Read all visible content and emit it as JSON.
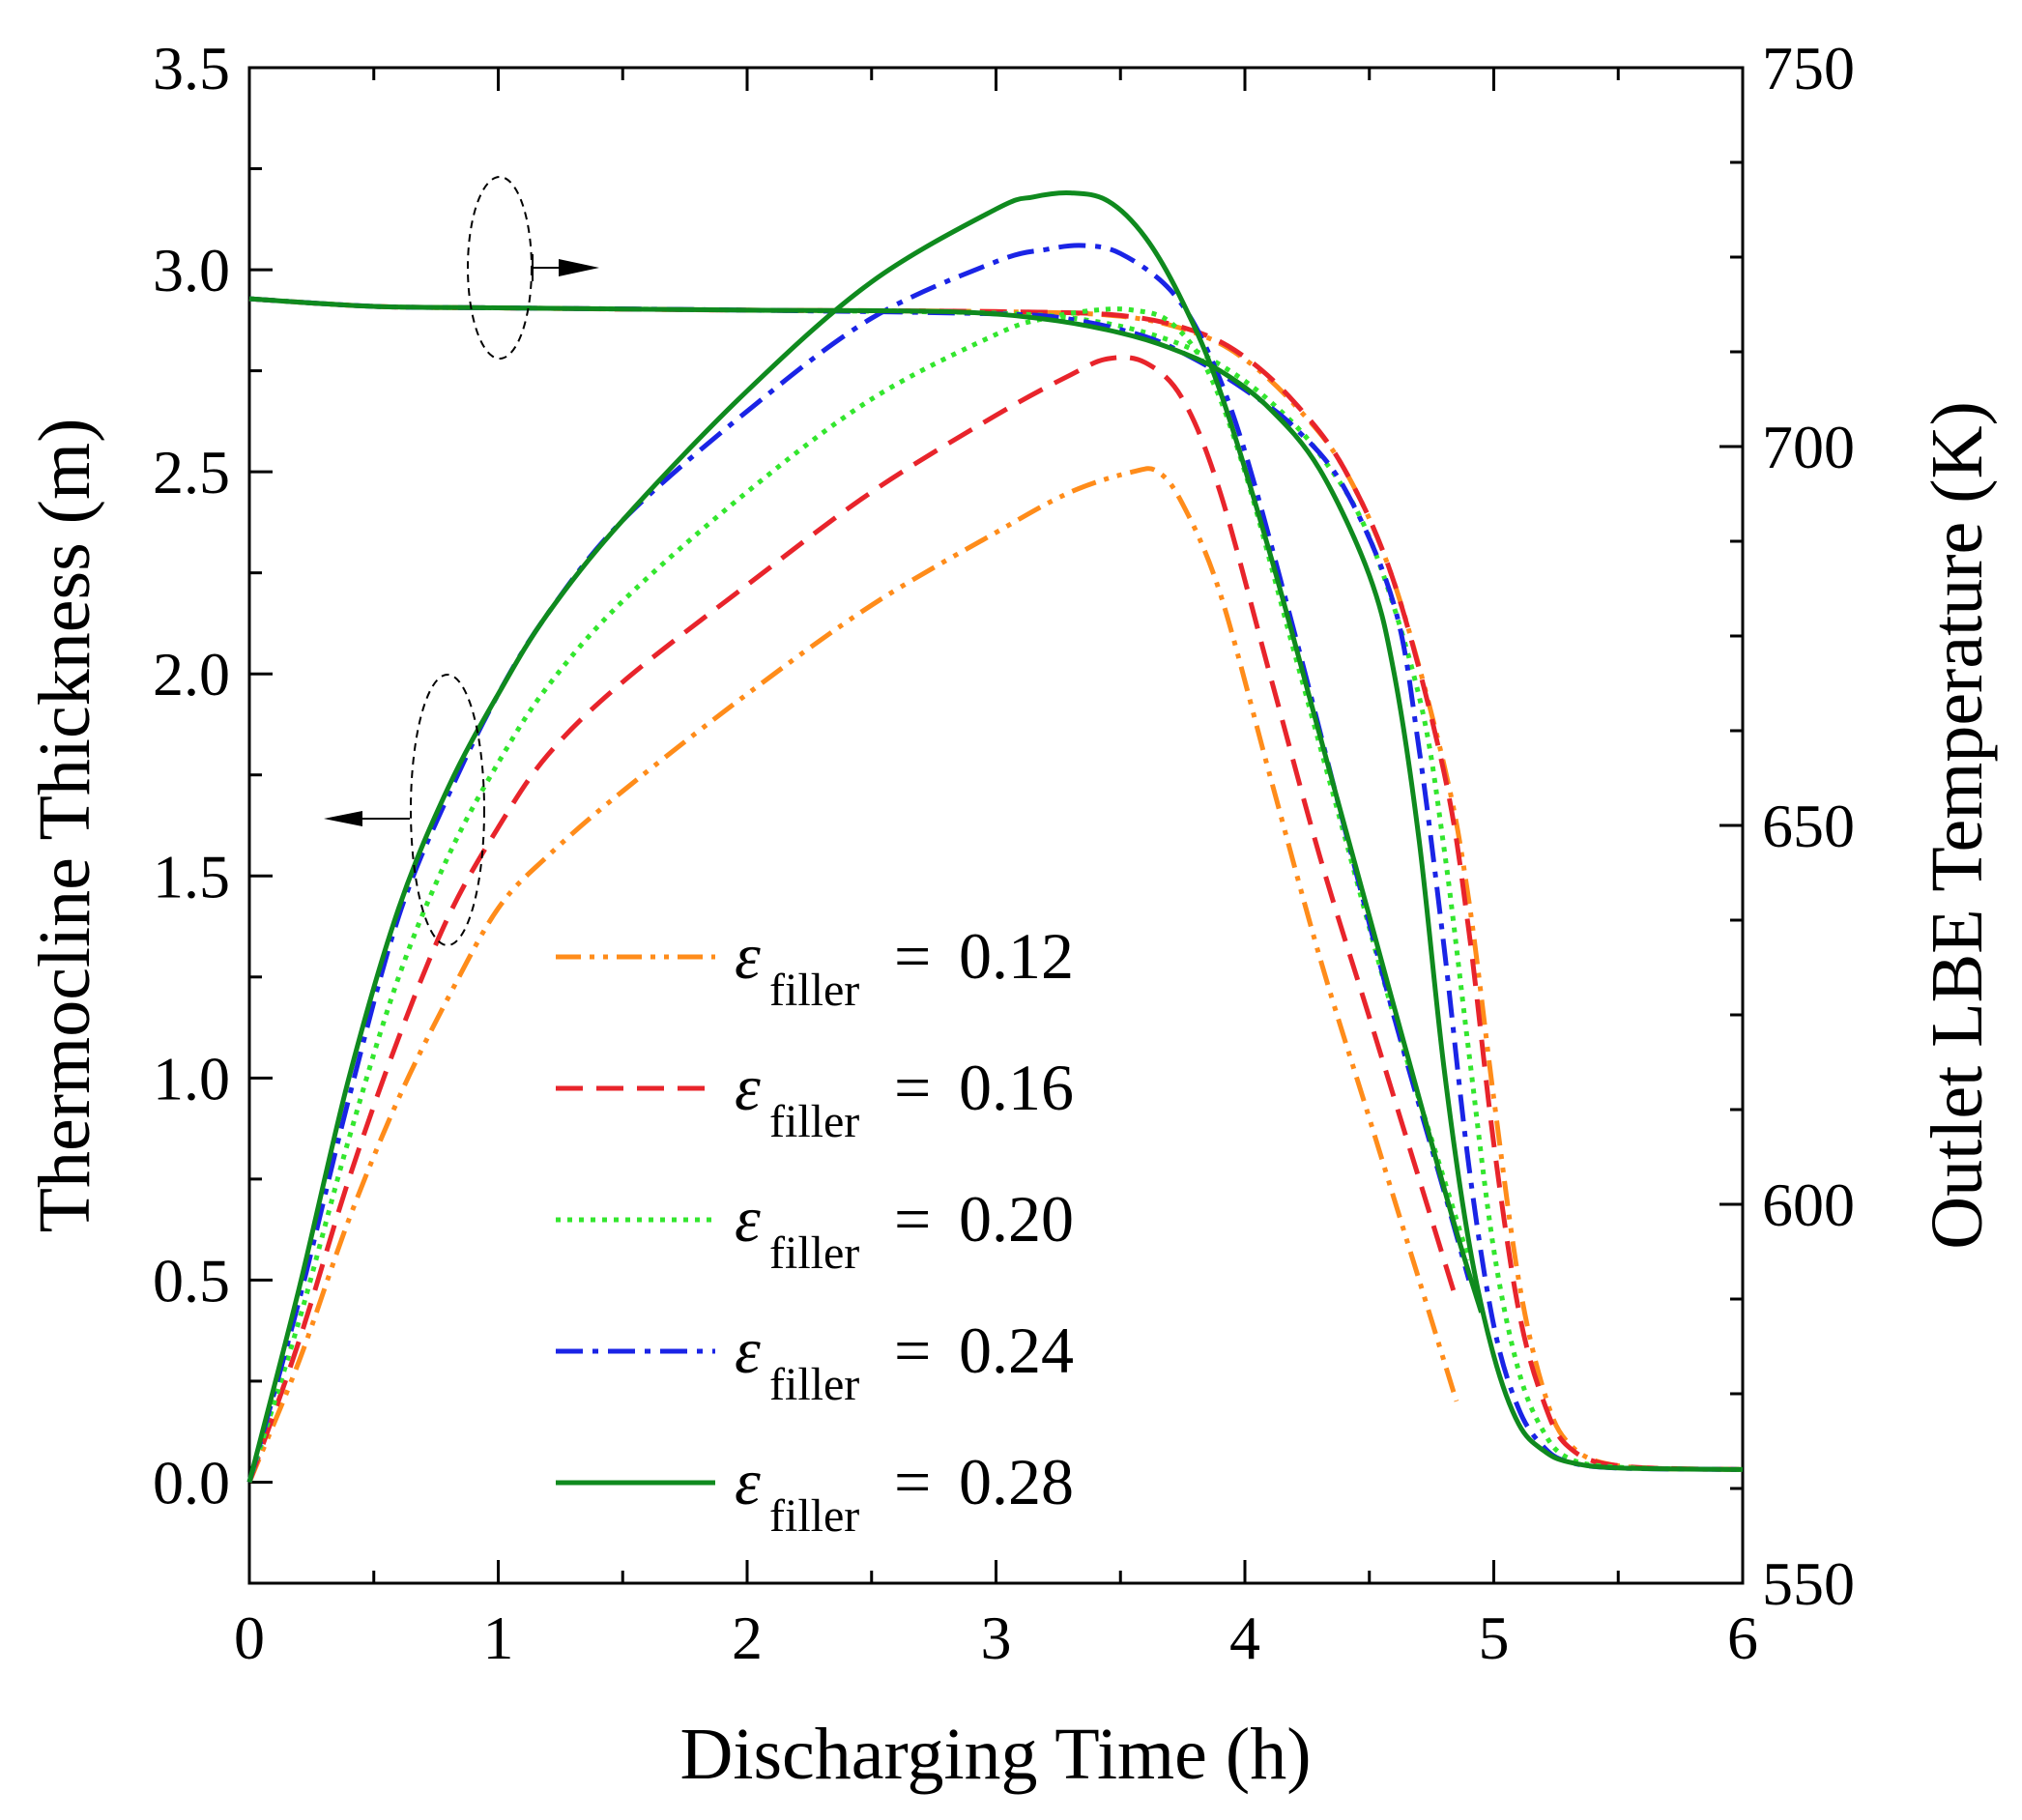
{
  "chart_data": {
    "type": "line",
    "title": "",
    "xlabel": "Discharging Time (h)",
    "ylabel_left": "Thermocline Thickness (m)",
    "ylabel_right": "Outlet LBE Temperature (K)",
    "xlim": [
      0,
      6
    ],
    "ylim_left": [
      -0.25,
      3.5
    ],
    "ylim_right": [
      550,
      750
    ],
    "x_ticks": [
      "0",
      "1",
      "2",
      "3",
      "4",
      "5",
      "6"
    ],
    "y_left_ticks": [
      "0.0",
      "0.5",
      "1.0",
      "1.5",
      "2.0",
      "2.5",
      "3.0",
      "3.5"
    ],
    "y_right_ticks": [
      "550",
      "600",
      "650",
      "700",
      "750"
    ],
    "grid": false,
    "legend_position": "lower-left-center",
    "legend": {
      "symbol": "ε",
      "subscript": "filler",
      "equals": "=",
      "values": [
        "0.12",
        "0.16",
        "0.20",
        "0.24",
        "0.28"
      ]
    },
    "series": [
      {
        "label": "0.12",
        "color": "#ff8c1a",
        "dash": "dash-dot-dot",
        "thickness": {
          "x": [
            0,
            0.2,
            0.4,
            0.6,
            0.8,
            1.0,
            1.2,
            1.5,
            2.0,
            2.5,
            3.0,
            3.3,
            3.55,
            3.65,
            3.75,
            3.9,
            4.1,
            4.3,
            4.5,
            4.7,
            4.85
          ],
          "y": [
            0.0,
            0.3,
            0.65,
            0.95,
            1.2,
            1.42,
            1.55,
            1.71,
            1.95,
            2.17,
            2.35,
            2.45,
            2.5,
            2.5,
            2.42,
            2.2,
            1.75,
            1.3,
            0.9,
            0.5,
            0.2
          ]
        },
        "temperature": {
          "x": [
            0,
            0.5,
            1.0,
            2.0,
            3.0,
            3.5,
            3.8,
            4.0,
            4.2,
            4.4,
            4.6,
            4.8,
            4.9,
            5.0,
            5.1,
            5.2,
            5.3,
            5.5,
            6.0
          ],
          "y": [
            719.5,
            718.5,
            718.3,
            718.0,
            717.8,
            717.2,
            715.0,
            711.5,
            705.5,
            697.0,
            682.0,
            658.0,
            640.0,
            614.0,
            590.0,
            575.5,
            568.5,
            565.5,
            565.0
          ]
        }
      },
      {
        "label": "0.16",
        "color": "#e8242b",
        "dash": "dash",
        "thickness": {
          "x": [
            0,
            0.2,
            0.4,
            0.6,
            0.8,
            1.0,
            1.2,
            1.5,
            2.0,
            2.5,
            3.0,
            3.3,
            3.45,
            3.6,
            3.75,
            3.9,
            4.1,
            4.3,
            4.5,
            4.7,
            4.85
          ],
          "y": [
            0.0,
            0.35,
            0.75,
            1.1,
            1.4,
            1.62,
            1.8,
            1.98,
            2.22,
            2.45,
            2.64,
            2.74,
            2.78,
            2.77,
            2.68,
            2.45,
            2.0,
            1.55,
            1.15,
            0.75,
            0.45
          ]
        },
        "temperature": {
          "x": [
            0,
            0.5,
            1.0,
            2.0,
            3.0,
            3.5,
            3.8,
            4.0,
            4.2,
            4.4,
            4.6,
            4.8,
            4.9,
            5.0,
            5.1,
            5.2,
            5.3,
            5.5,
            6.0
          ],
          "y": [
            719.5,
            718.5,
            718.3,
            718.0,
            717.8,
            717.3,
            715.2,
            711.8,
            705.8,
            697.0,
            682.0,
            657.0,
            636.0,
            608.0,
            586.0,
            574.0,
            568.0,
            565.5,
            565.0
          ]
        }
      },
      {
        "label": "0.20",
        "color": "#33e62e",
        "dash": "dot",
        "thickness": {
          "x": [
            0,
            0.2,
            0.4,
            0.6,
            0.8,
            1.0,
            1.2,
            1.5,
            2.0,
            2.5,
            3.0,
            3.2,
            3.4,
            3.55,
            3.7,
            3.85,
            4.0,
            4.2,
            4.4,
            4.6,
            4.8,
            4.9
          ],
          "y": [
            0.0,
            0.4,
            0.85,
            1.25,
            1.55,
            1.78,
            1.97,
            2.18,
            2.45,
            2.68,
            2.84,
            2.88,
            2.9,
            2.9,
            2.87,
            2.75,
            2.5,
            2.05,
            1.6,
            1.15,
            0.75,
            0.55
          ]
        },
        "temperature": {
          "x": [
            0,
            0.5,
            1.0,
            2.0,
            3.0,
            3.4,
            3.7,
            3.9,
            4.1,
            4.3,
            4.5,
            4.7,
            4.8,
            4.9,
            5.0,
            5.1,
            5.2,
            5.3,
            5.5,
            6.0
          ],
          "y": [
            719.5,
            718.5,
            718.3,
            718.0,
            717.6,
            716.5,
            714.0,
            710.8,
            706.0,
            699.0,
            688.0,
            667.0,
            647.0,
            620.0,
            594.0,
            578.0,
            570.0,
            566.5,
            565.3,
            565.0
          ]
        }
      },
      {
        "label": "0.24",
        "color": "#1a24e6",
        "dash": "dash-dot",
        "thickness": {
          "x": [
            0,
            0.2,
            0.4,
            0.6,
            0.8,
            1.0,
            1.2,
            1.5,
            2.0,
            2.5,
            3.0,
            3.2,
            3.35,
            3.5,
            3.7,
            3.85,
            4.0,
            4.2,
            4.4,
            4.6,
            4.8,
            4.9
          ],
          "y": [
            0.0,
            0.45,
            0.95,
            1.4,
            1.7,
            1.95,
            2.15,
            2.38,
            2.65,
            2.88,
            3.02,
            3.05,
            3.06,
            3.04,
            2.95,
            2.8,
            2.55,
            2.1,
            1.62,
            1.15,
            0.72,
            0.5
          ]
        },
        "temperature": {
          "x": [
            0,
            0.5,
            1.0,
            2.0,
            3.0,
            3.3,
            3.6,
            3.8,
            4.0,
            4.2,
            4.4,
            4.6,
            4.7,
            4.8,
            4.9,
            5.0,
            5.1,
            5.2,
            5.3,
            5.5,
            6.0
          ],
          "y": [
            719.5,
            718.5,
            718.3,
            718.0,
            717.5,
            716.8,
            714.5,
            711.5,
            707.5,
            702.5,
            694.5,
            679.0,
            660.0,
            634.0,
            605.0,
            584.0,
            573.0,
            568.0,
            566.0,
            565.2,
            565.0
          ]
        }
      },
      {
        "label": "0.28",
        "color": "#0f8a1e",
        "dash": "solid",
        "thickness": {
          "x": [
            0,
            0.2,
            0.4,
            0.6,
            0.8,
            1.0,
            1.2,
            1.5,
            2.0,
            2.5,
            3.0,
            3.15,
            3.3,
            3.45,
            3.6,
            3.75,
            3.9,
            4.1,
            4.3,
            4.5,
            4.7,
            4.85,
            4.95
          ],
          "y": [
            0.0,
            0.48,
            1.0,
            1.42,
            1.72,
            1.95,
            2.15,
            2.38,
            2.7,
            2.97,
            3.15,
            3.18,
            3.19,
            3.17,
            3.08,
            2.92,
            2.7,
            2.3,
            1.85,
            1.4,
            0.95,
            0.62,
            0.42
          ]
        },
        "temperature": {
          "x": [
            0,
            0.5,
            1.0,
            2.0,
            2.8,
            3.2,
            3.5,
            3.7,
            3.9,
            4.1,
            4.3,
            4.5,
            4.6,
            4.7,
            4.8,
            4.9,
            5.0,
            5.1,
            5.2,
            5.3,
            5.5,
            6.0
          ],
          "y": [
            719.5,
            718.5,
            718.3,
            718.0,
            717.8,
            716.8,
            715.0,
            713.0,
            710.0,
            705.0,
            697.0,
            683.0,
            670.0,
            648.0,
            618.0,
            595.0,
            580.0,
            571.0,
            567.5,
            566.0,
            565.2,
            565.0
          ]
        }
      }
    ]
  }
}
